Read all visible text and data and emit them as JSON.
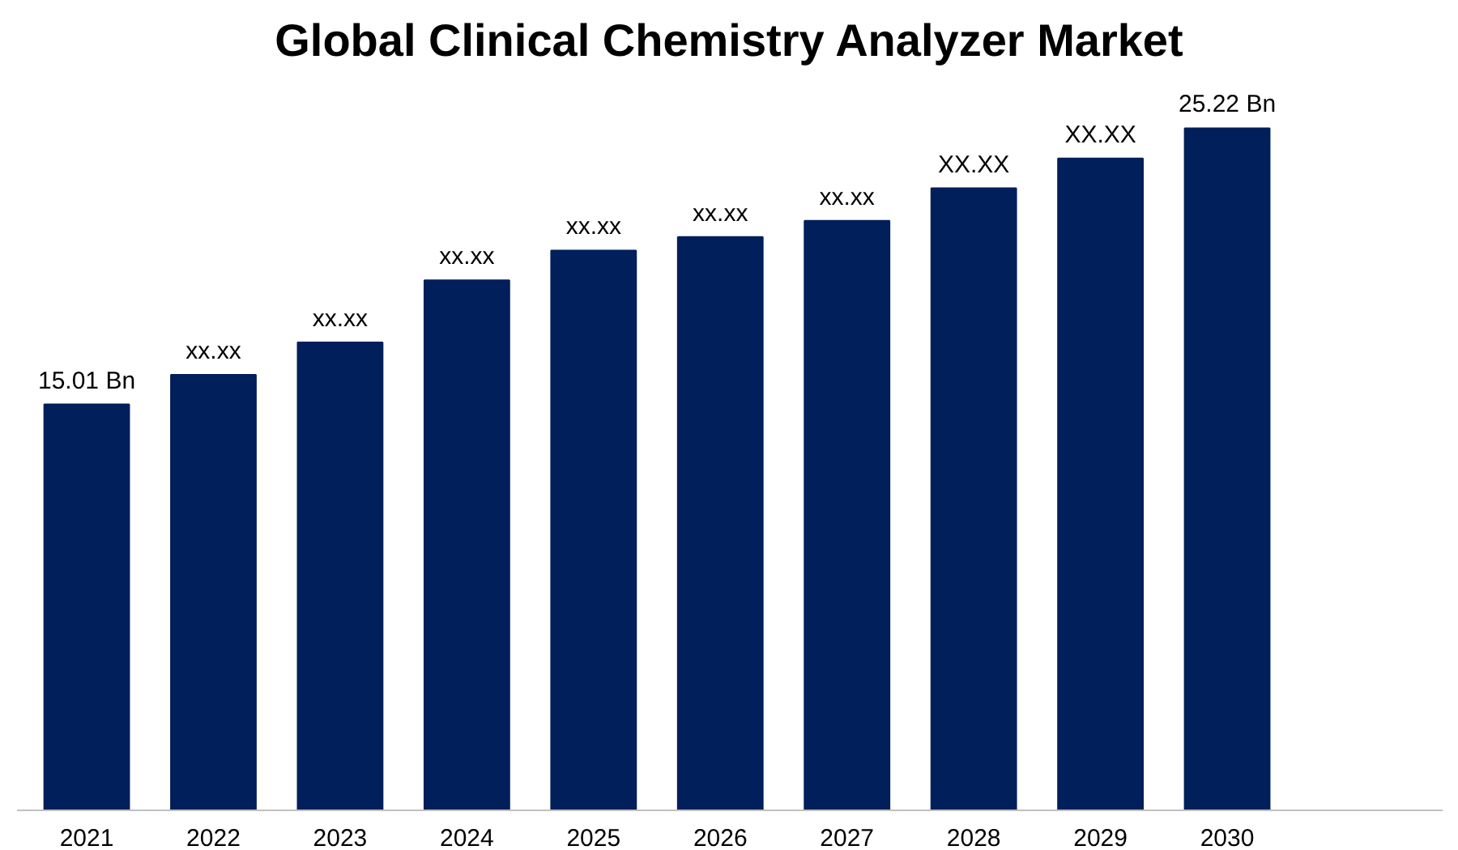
{
  "chart_data": {
    "type": "bar",
    "title": "Global Clinical Chemistry Analyzer Market",
    "categories": [
      "2021",
      "2022",
      "2023",
      "2024",
      "2025",
      "2026",
      "2027",
      "2028",
      "2029",
      "2030"
    ],
    "values": [
      15.01,
      16.1,
      17.3,
      19.6,
      20.7,
      21.2,
      21.8,
      23.0,
      24.1,
      25.22
    ],
    "color": "#001f5b",
    "value_labels": [
      "15.01 Bn",
      "xx.xx",
      "xx.xx",
      "xx.xx",
      "xx.xx",
      "xx.xx",
      "xx.xx",
      "XX.XX",
      "XX.XX",
      "25.22 Bn"
    ],
    "grid": false
  }
}
